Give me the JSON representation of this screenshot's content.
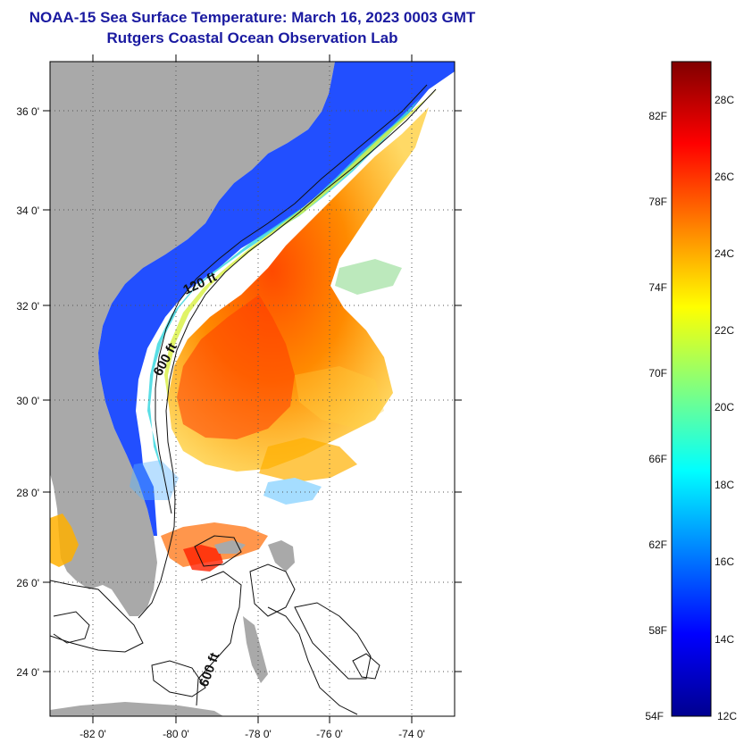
{
  "header": {
    "title": "NOAA-15 Sea Surface Temperature:  March 16, 2023 0003 GMT",
    "subtitle": "Rutgers Coastal Ocean Observation Lab"
  },
  "map": {
    "lat_labels": [
      "36 0'",
      "34 0'",
      "32 0'",
      "30 0'",
      "28 0'",
      "26 0'",
      "24 0'"
    ],
    "lon_labels": [
      "-82 0'",
      "-80 0'",
      "-78 0'",
      "-76 0'",
      "-74 0'"
    ],
    "contour_labels": [
      "120 ft",
      "600 ft",
      "600 ft"
    ],
    "colors": {
      "land": "#a9a9a9",
      "background": "#ffffff"
    }
  },
  "colorbar": {
    "fahrenheit_labels": [
      "82F",
      "78F",
      "74F",
      "70F",
      "66F",
      "62F",
      "58F",
      "54F"
    ],
    "celsius_labels": [
      "28C",
      "26C",
      "24C",
      "22C",
      "20C",
      "18C",
      "16C",
      "14C",
      "12C"
    ],
    "range_c": [
      12,
      29
    ],
    "colormap": "jet"
  }
}
